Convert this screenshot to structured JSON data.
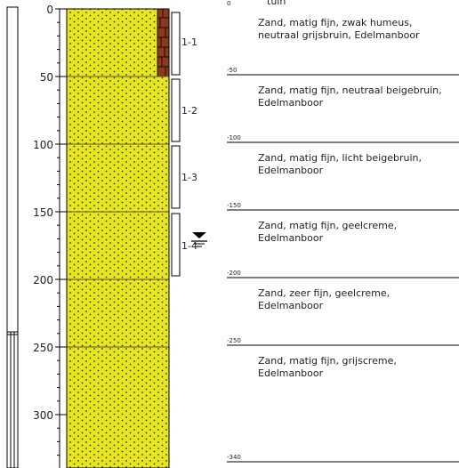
{
  "top_label": "tuin",
  "scale_ticks": [
    "0",
    "50",
    "100",
    "150",
    "200",
    "250",
    "300"
  ],
  "depth_marks": [
    "0",
    "-50",
    "-100",
    "-150",
    "-200",
    "-250",
    "-340"
  ],
  "samples": [
    "1-1",
    "1-2",
    "1-3",
    "1-4"
  ],
  "layers": [
    {
      "line1": "Zand, matig fijn, zwak humeus,",
      "line2": "neutraal grijsbruin, Edelmanboor"
    },
    {
      "line1": "Zand, matig fijn, neutraal beigebruin,",
      "line2": "Edelmanboor"
    },
    {
      "line1": "Zand, matig fijn, licht beigebruin,",
      "line2": "Edelmanboor"
    },
    {
      "line1": "Zand, matig fijn, geelcreme,",
      "line2": "Edelmanboor"
    },
    {
      "line1": "Zand, zeer fijn, geelcreme,",
      "line2": "Edelmanboor"
    },
    {
      "line1": "Zand, matig fijn, grijscreme,",
      "line2": "Edelmanboor"
    }
  ],
  "colors": {
    "sand": "#e6e61e",
    "humus": "#8b3a1e",
    "dots": "#333333",
    "line": "#000000"
  },
  "icons": {
    "groundwater": "groundwater-level-icon"
  }
}
